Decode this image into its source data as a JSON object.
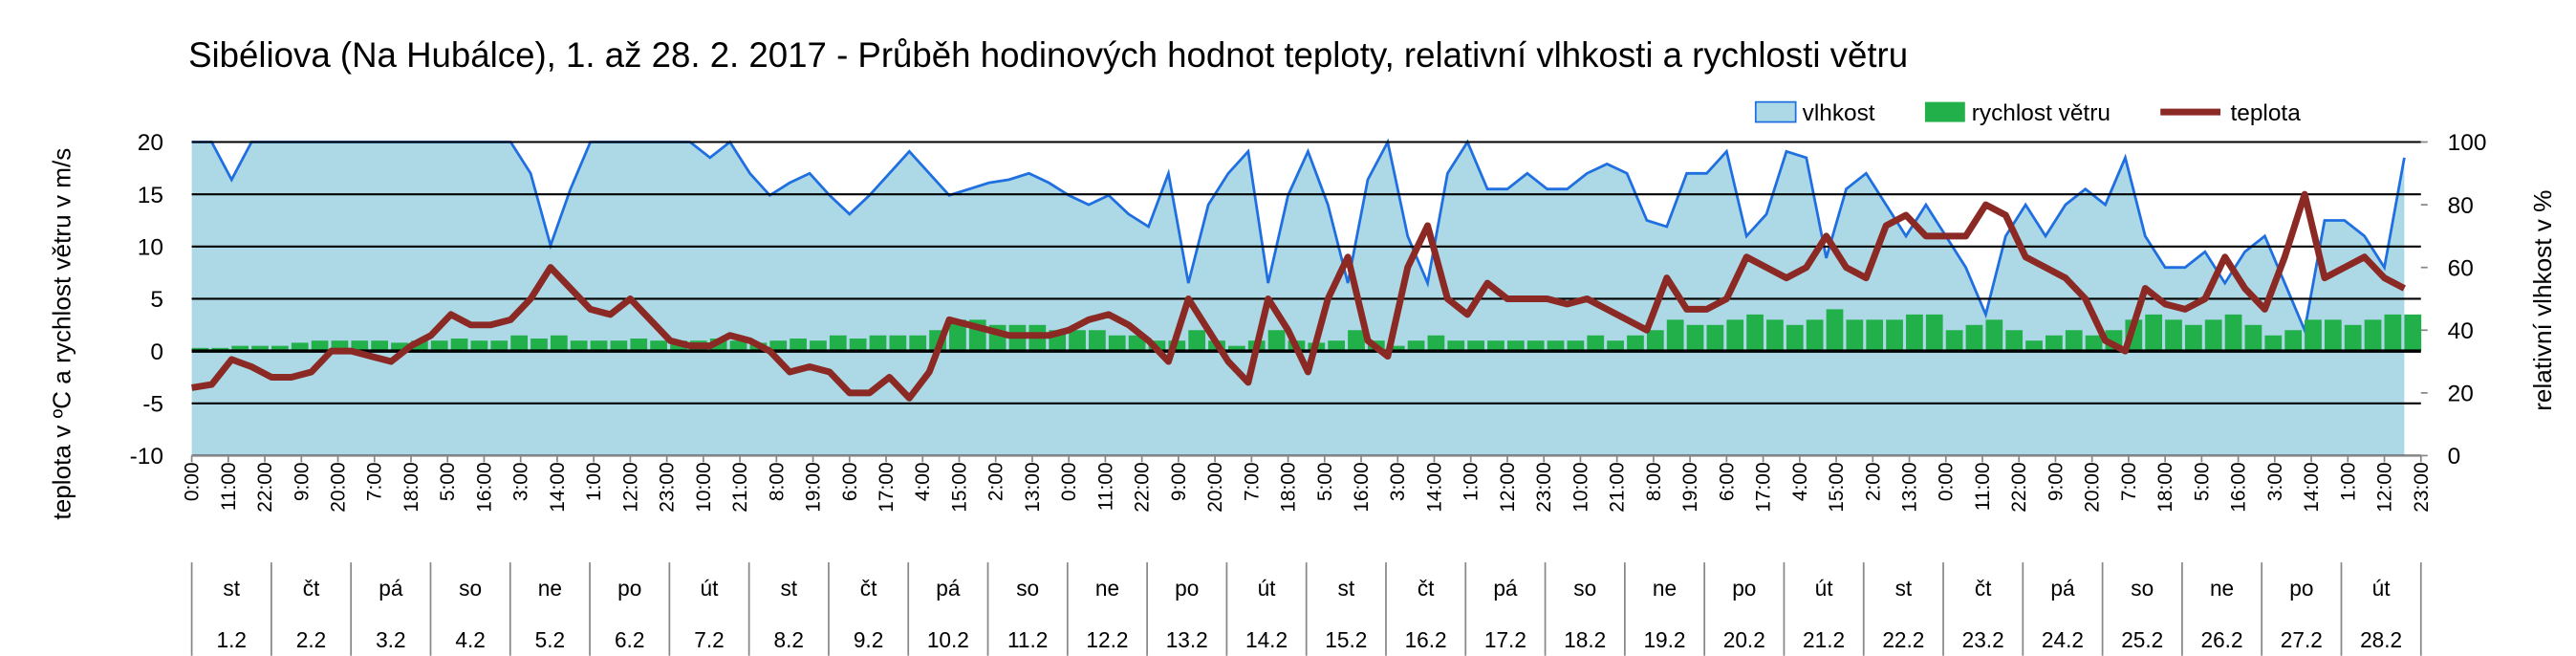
{
  "chart_data": {
    "type": "combo",
    "title": "Sibéliova (Na Hubálce), 1. až 28. 2. 2017 - Průběh hodinových hodnot teploty, relativní vlhkosti a rychlosti větru",
    "y_label": "teplota v ºC a rychlost větru v m/s",
    "y2_label": "relativní vlhkost v %",
    "legend": "top-right",
    "grid": true,
    "xlim": [
      0,
      671
    ],
    "xticks": [
      {
        "value": 0,
        "label": "0:00"
      },
      {
        "value": 11,
        "label": "11:00"
      },
      {
        "value": 22,
        "label": "22:00"
      },
      {
        "value": 33,
        "label": "9:00"
      },
      {
        "value": 44,
        "label": "20:00"
      },
      {
        "value": 55,
        "label": "7:00"
      },
      {
        "value": 66,
        "label": "18:00"
      },
      {
        "value": 77,
        "label": "5:00"
      },
      {
        "value": 88,
        "label": "16:00"
      },
      {
        "value": 99,
        "label": "3:00"
      },
      {
        "value": 110,
        "label": "14:00"
      },
      {
        "value": 121,
        "label": "1:00"
      },
      {
        "value": 132,
        "label": "12:00"
      },
      {
        "value": 143,
        "label": "23:00"
      },
      {
        "value": 154,
        "label": "10:00"
      },
      {
        "value": 165,
        "label": "21:00"
      },
      {
        "value": 176,
        "label": "8:00"
      },
      {
        "value": 187,
        "label": "19:00"
      },
      {
        "value": 198,
        "label": "6:00"
      },
      {
        "value": 209,
        "label": "17:00"
      },
      {
        "value": 220,
        "label": "4:00"
      },
      {
        "value": 231,
        "label": "15:00"
      },
      {
        "value": 242,
        "label": "2:00"
      },
      {
        "value": 253,
        "label": "13:00"
      },
      {
        "value": 264,
        "label": "0:00"
      },
      {
        "value": 275,
        "label": "11:00"
      },
      {
        "value": 286,
        "label": "22:00"
      },
      {
        "value": 297,
        "label": "9:00"
      },
      {
        "value": 308,
        "label": "20:00"
      },
      {
        "value": 319,
        "label": "7:00"
      },
      {
        "value": 330,
        "label": "18:00"
      },
      {
        "value": 341,
        "label": "5:00"
      },
      {
        "value": 352,
        "label": "16:00"
      },
      {
        "value": 363,
        "label": "3:00"
      },
      {
        "value": 374,
        "label": "14:00"
      },
      {
        "value": 385,
        "label": "1:00"
      },
      {
        "value": 396,
        "label": "12:00"
      },
      {
        "value": 407,
        "label": "23:00"
      },
      {
        "value": 418,
        "label": "10:00"
      },
      {
        "value": 429,
        "label": "21:00"
      },
      {
        "value": 440,
        "label": "8:00"
      },
      {
        "value": 451,
        "label": "19:00"
      },
      {
        "value": 462,
        "label": "6:00"
      },
      {
        "value": 473,
        "label": "17:00"
      },
      {
        "value": 484,
        "label": "4:00"
      },
      {
        "value": 495,
        "label": "15:00"
      },
      {
        "value": 506,
        "label": "2:00"
      },
      {
        "value": 517,
        "label": "13:00"
      },
      {
        "value": 528,
        "label": "0:00"
      },
      {
        "value": 539,
        "label": "11:00"
      },
      {
        "value": 550,
        "label": "22:00"
      },
      {
        "value": 561,
        "label": "9:00"
      },
      {
        "value": 572,
        "label": "20:00"
      },
      {
        "value": 583,
        "label": "7:00"
      },
      {
        "value": 594,
        "label": "18:00"
      },
      {
        "value": 605,
        "label": "5:00"
      },
      {
        "value": 616,
        "label": "16:00"
      },
      {
        "value": 627,
        "label": "3:00"
      },
      {
        "value": 638,
        "label": "14:00"
      },
      {
        "value": 649,
        "label": "1:00"
      },
      {
        "value": 660,
        "label": "12:00"
      },
      {
        "value": 671,
        "label": "23:00"
      }
    ],
    "weekdays": [
      "st",
      "čt",
      "pá",
      "so",
      "ne",
      "po",
      "út",
      "st",
      "čt",
      "pá",
      "so",
      "ne",
      "po",
      "út",
      "st",
      "čt",
      "pá",
      "so",
      "ne",
      "po",
      "út",
      "st",
      "čt",
      "pá",
      "so",
      "ne",
      "po",
      "út"
    ],
    "dates": [
      "1.2",
      "2.2",
      "3.2",
      "4.2",
      "5.2",
      "6.2",
      "7.2",
      "8.2",
      "9.2",
      "10.2",
      "11.2",
      "12.2",
      "13.2",
      "14.2",
      "15.2",
      "16.2",
      "17.2",
      "18.2",
      "19.2",
      "20.2",
      "21.2",
      "22.2",
      "23.2",
      "24.2",
      "25.2",
      "26.2",
      "27.2",
      "28.2"
    ],
    "ylim": [
      -10,
      20
    ],
    "yticks": [
      -10,
      -5,
      0,
      5,
      10,
      15,
      20
    ],
    "y2lim": [
      0,
      100
    ],
    "y2ticks": [
      0,
      20,
      40,
      60,
      80,
      100
    ],
    "x": [
      0,
      6,
      12,
      18,
      24,
      30,
      36,
      42,
      48,
      54,
      60,
      66,
      72,
      78,
      84,
      90,
      96,
      102,
      108,
      114,
      120,
      126,
      132,
      138,
      144,
      150,
      156,
      162,
      168,
      174,
      180,
      186,
      192,
      198,
      204,
      210,
      216,
      222,
      228,
      234,
      240,
      246,
      252,
      258,
      264,
      270,
      276,
      282,
      288,
      294,
      300,
      306,
      312,
      318,
      324,
      330,
      336,
      342,
      348,
      354,
      360,
      366,
      372,
      378,
      384,
      390,
      396,
      402,
      408,
      414,
      420,
      426,
      432,
      438,
      444,
      450,
      456,
      462,
      468,
      474,
      480,
      486,
      492,
      498,
      504,
      510,
      516,
      522,
      528,
      534,
      540,
      546,
      552,
      558,
      564,
      570,
      576,
      582,
      588,
      594,
      600,
      606,
      612,
      618,
      624,
      630,
      636,
      642,
      648,
      654,
      660,
      666
    ],
    "series": [
      {
        "name": "vlhkost",
        "type": "area",
        "axis": "y2",
        "color": "#add8e6",
        "edge": "#1f6fe0",
        "values": [
          100,
          100,
          88,
          100,
          100,
          100,
          100,
          100,
          100,
          100,
          100,
          100,
          100,
          100,
          100,
          100,
          100,
          90,
          67,
          85,
          100,
          100,
          100,
          100,
          100,
          100,
          95,
          100,
          90,
          83,
          87,
          90,
          83,
          77,
          83,
          90,
          97,
          90,
          83,
          85,
          87,
          88,
          90,
          87,
          83,
          80,
          83,
          77,
          73,
          90,
          55,
          80,
          90,
          97,
          55,
          83,
          97,
          80,
          55,
          88,
          100,
          70,
          55,
          90,
          100,
          85,
          85,
          90,
          85,
          85,
          90,
          93,
          90,
          75,
          73,
          90,
          90,
          97,
          70,
          77,
          97,
          95,
          63,
          85,
          90,
          80,
          70,
          80,
          70,
          60,
          45,
          70,
          80,
          70,
          80,
          85,
          80,
          95,
          70,
          60,
          60,
          65,
          55,
          65,
          70,
          55,
          40,
          75,
          75,
          70,
          60,
          95
        ]
      },
      {
        "name": "rychlost větru",
        "type": "bar",
        "color": "#22b04a",
        "values": [
          0.3,
          0.3,
          0.5,
          0.5,
          0.5,
          0.8,
          1,
          1,
          1,
          1,
          0.8,
          1,
          1,
          1.2,
          1,
          1,
          1.5,
          1.2,
          1.5,
          1,
          1,
          1,
          1.2,
          1,
          1,
          1,
          1.2,
          1,
          0.8,
          1,
          1.2,
          1,
          1.5,
          1.2,
          1.5,
          1.5,
          1.5,
          2,
          3,
          3,
          2.5,
          2.5,
          2.5,
          2,
          2,
          2,
          1.5,
          1.5,
          1,
          1,
          2,
          1,
          0.5,
          1,
          2,
          1,
          0.8,
          1,
          2,
          1,
          0.5,
          1,
          1.5,
          1,
          1,
          1,
          1,
          1,
          1,
          1,
          1.5,
          1,
          1.5,
          2,
          3,
          2.5,
          2.5,
          3,
          3.5,
          3,
          2.5,
          3,
          4,
          3,
          3,
          3,
          3.5,
          3.5,
          2,
          2.5,
          3,
          2,
          1,
          1.5,
          2,
          1.5,
          2,
          3,
          3.5,
          3,
          2.5,
          3,
          3.5,
          2.5,
          1.5,
          2,
          3,
          3,
          2.5,
          3,
          3.5,
          3.5
        ]
      },
      {
        "name": "teplota",
        "type": "line",
        "color": "#8b2a24",
        "values": [
          -3.5,
          -3.2,
          -0.8,
          -1.5,
          -2.5,
          -2.5,
          -2,
          0,
          0,
          -0.5,
          -1,
          0.5,
          1.5,
          3.5,
          2.5,
          2.5,
          3,
          5,
          8,
          6,
          4,
          3.5,
          5,
          3,
          1,
          0.5,
          0.5,
          1.5,
          1,
          0,
          -2,
          -1.5,
          -2,
          -4,
          -4,
          -2.5,
          -4.5,
          -2,
          3,
          2.5,
          2,
          1.5,
          1.5,
          1.5,
          2,
          3,
          3.5,
          2.5,
          1,
          -1,
          5,
          2,
          -1,
          -3,
          5,
          2,
          -2,
          5,
          9,
          1,
          -0.5,
          8,
          12,
          5,
          3.5,
          6.5,
          5,
          5,
          5,
          4.5,
          5,
          4,
          3,
          2,
          7,
          4,
          4,
          5,
          9,
          8,
          7,
          8,
          11,
          8,
          7,
          12,
          13,
          11,
          11,
          11,
          14,
          13,
          9,
          8,
          7,
          5,
          1,
          0,
          6,
          4.5,
          4,
          5,
          9,
          6,
          4,
          9,
          15,
          7,
          8,
          9,
          7,
          6
        ]
      }
    ]
  }
}
